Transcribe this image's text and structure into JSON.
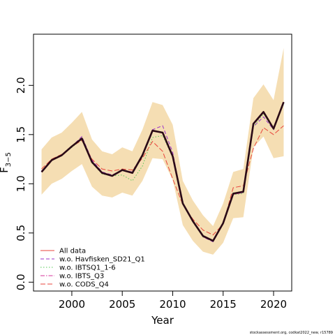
{
  "chart_data": {
    "type": "line",
    "xlabel": "Year",
    "ylabel": "F",
    "ylabel_subscript": "3−5",
    "xlim": [
      1996.2,
      2021.8
    ],
    "ylim": [
      -0.09,
      2.52
    ],
    "x_ticks": [
      2000,
      2005,
      2010,
      2015,
      2020
    ],
    "x_tick_labels": [
      "2000",
      "2005",
      "2010",
      "2015",
      "2020"
    ],
    "y_ticks": [
      0,
      0.5,
      1,
      1.5,
      2
    ],
    "y_tick_labels": [
      "0.0",
      "0.5",
      "1.0",
      "1.5",
      "2.0"
    ],
    "grid": false,
    "legend_position": "bottom-left",
    "x": [
      1997,
      1998,
      1999,
      2000,
      2001,
      2002,
      2003,
      2004,
      2005,
      2006,
      2007,
      2008,
      2009,
      2010,
      2011,
      2012,
      2013,
      2014,
      2015,
      2016,
      2017,
      2018,
      2019,
      2020,
      2021
    ],
    "confidence_band": {
      "color": "#f5deb3",
      "upper": [
        1.35,
        1.47,
        1.52,
        1.62,
        1.73,
        1.45,
        1.33,
        1.3,
        1.37,
        1.33,
        1.55,
        1.83,
        1.8,
        1.6,
        1.03,
        0.83,
        0.68,
        0.57,
        0.8,
        1.12,
        1.15,
        1.87,
        2.01,
        1.85,
        2.38
      ],
      "lower": [
        0.89,
        1.0,
        1.05,
        1.13,
        1.2,
        0.97,
        0.88,
        0.86,
        0.91,
        0.88,
        1.03,
        1.26,
        1.25,
        1.04,
        0.58,
        0.42,
        0.31,
        0.28,
        0.4,
        0.65,
        0.66,
        1.37,
        1.48,
        1.26,
        1.28
      ]
    },
    "main_line": {
      "color": "#2a0a16",
      "values": [
        1.12,
        1.24,
        1.29,
        1.38,
        1.46,
        1.22,
        1.11,
        1.08,
        1.14,
        1.11,
        1.29,
        1.54,
        1.52,
        1.28,
        0.8,
        0.62,
        0.47,
        0.42,
        0.6,
        0.9,
        0.92,
        1.61,
        1.73,
        1.56,
        1.83
      ]
    },
    "series": [
      {
        "name": "All data",
        "color": "#e8453c",
        "dash": "solid",
        "values": [
          1.12,
          1.24,
          1.29,
          1.38,
          1.46,
          1.22,
          1.11,
          1.08,
          1.14,
          1.11,
          1.29,
          1.54,
          1.52,
          1.28,
          0.8,
          0.62,
          0.47,
          0.42,
          0.6,
          0.9,
          0.92,
          1.61,
          1.73,
          1.56,
          1.83
        ]
      },
      {
        "name": "w.o. Havfisken_SD21_Q1",
        "color": "#9b30c8",
        "dash": "5,3",
        "values": [
          1.13,
          1.24,
          1.29,
          1.38,
          1.48,
          1.24,
          1.12,
          1.09,
          1.14,
          1.12,
          1.3,
          1.55,
          1.59,
          1.32,
          0.8,
          0.62,
          0.46,
          0.41,
          0.6,
          0.9,
          0.91,
          1.58,
          1.68,
          1.55,
          1.82
        ]
      },
      {
        "name": "w.o. IBTSQ1_1-6",
        "color": "#55c855",
        "dash": "1.5,2.5",
        "values": [
          1.12,
          1.24,
          1.29,
          1.37,
          1.45,
          1.21,
          1.1,
          1.08,
          1.09,
          1.03,
          1.18,
          1.47,
          1.49,
          1.27,
          0.79,
          0.61,
          0.46,
          0.42,
          0.6,
          0.89,
          0.9,
          1.58,
          1.71,
          1.55,
          1.81
        ]
      },
      {
        "name": "w.o. IBTS_Q3",
        "color": "#d4309a",
        "dash": "6,2,1.5,2",
        "values": [
          1.12,
          1.24,
          1.29,
          1.38,
          1.46,
          1.22,
          1.11,
          1.08,
          1.14,
          1.11,
          1.29,
          1.54,
          1.52,
          1.28,
          0.8,
          0.62,
          0.46,
          0.42,
          0.6,
          0.89,
          0.91,
          1.6,
          1.72,
          1.56,
          1.83
        ]
      },
      {
        "name": "w.o. CODS_Q4",
        "color": "#e8453c",
        "dash": "7,3",
        "values": [
          1.15,
          1.25,
          1.3,
          1.38,
          1.44,
          1.25,
          1.15,
          1.13,
          1.15,
          1.14,
          1.26,
          1.43,
          1.33,
          1.05,
          0.79,
          0.64,
          0.53,
          0.48,
          0.59,
          0.96,
          0.98,
          1.36,
          1.57,
          1.5,
          1.59
        ]
      }
    ]
  },
  "footnote": "stockassessment.org, codkat2022_new, r15789"
}
